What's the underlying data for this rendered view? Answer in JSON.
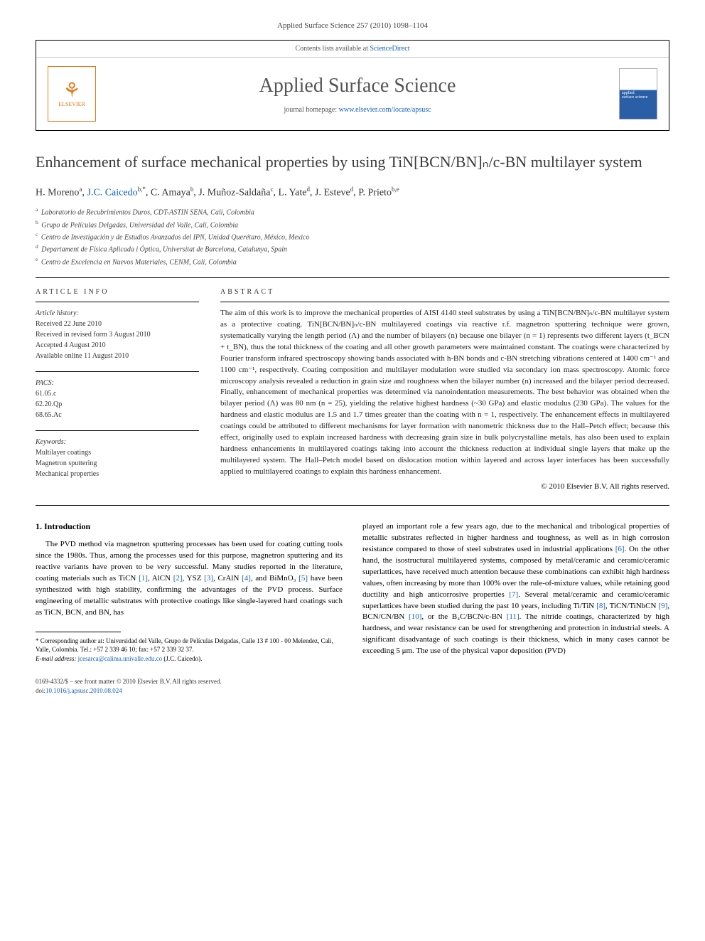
{
  "journal_ref": "Applied Surface Science 257 (2010) 1098–1104",
  "header": {
    "contents_text": "Contents lists available at ",
    "contents_link": "ScienceDirect",
    "journal_title": "Applied Surface Science",
    "home_prefix": "journal homepage: ",
    "home_url": "www.elsevier.com/locate/apsusc",
    "publisher": "ELSEVIER",
    "cover_line1": "applied",
    "cover_line2": "surface science"
  },
  "title": "Enhancement of surface mechanical properties by using TiN[BCN/BN]ₙ/c-BN multilayer system",
  "authors_html": "H. Moreno<sup>a</sup>, J.C. Caicedo<sup>b,*</sup>, C. Amaya<sup>b</sup>, J. Muñoz-Saldaña<sup>c</sup>, L. Yate<sup>d</sup>, J. Esteve<sup>d</sup>, P. Prieto<sup>b,e</sup>",
  "affiliations": [
    {
      "sup": "a",
      "text": "Laboratorio de Recubrimientos Duros, CDT-ASTIN SENA, Cali, Colombia"
    },
    {
      "sup": "b",
      "text": "Grupo de Películas Delgadas, Universidad del Valle, Cali, Colombia"
    },
    {
      "sup": "c",
      "text": "Centro de Investigación y de Estudios Avanzados del IPN, Unidad Querétaro, México, Mexico"
    },
    {
      "sup": "d",
      "text": "Departament de Física Aplicada i Òptica, Universitat de Barcelona, Catalunya, Spain"
    },
    {
      "sup": "e",
      "text": "Centro de Excelencia en Nuevos Materiales, CENM, Cali, Colombia"
    }
  ],
  "info": {
    "heading": "ARTICLE INFO",
    "history_hdr": "Article history:",
    "history": [
      "Received 22 June 2010",
      "Received in revised form 3 August 2010",
      "Accepted 4 August 2010",
      "Available online 11 August 2010"
    ],
    "pacs_hdr": "PACS:",
    "pacs": [
      "61.05.c",
      "62.20.Qp",
      "68.65.Ac"
    ],
    "keywords_hdr": "Keywords:",
    "keywords": [
      "Multilayer coatings",
      "Magnetron sputtering",
      "Mechanical properties"
    ]
  },
  "abstract": {
    "heading": "ABSTRACT",
    "text": "The aim of this work is to improve the mechanical properties of AISI 4140 steel substrates by using a TiN[BCN/BN]ₙ/c-BN multilayer system as a protective coating. TiN[BCN/BN]ₙ/c-BN multilayered coatings via reactive r.f. magnetron sputtering technique were grown, systematically varying the length period (Λ) and the number of bilayers (n) because one bilayer (n = 1) represents two different layers (t_BCN + t_BN), thus the total thickness of the coating and all other growth parameters were maintained constant. The coatings were characterized by Fourier transform infrared spectroscopy showing bands associated with h-BN bonds and c-BN stretching vibrations centered at 1400 cm⁻¹ and 1100 cm⁻¹, respectively. Coating composition and multilayer modulation were studied via secondary ion mass spectroscopy. Atomic force microscopy analysis revealed a reduction in grain size and roughness when the bilayer number (n) increased and the bilayer period decreased. Finally, enhancement of mechanical properties was determined via nanoindentation measurements. The best behavior was obtained when the bilayer period (Λ) was 80 nm (n = 25), yielding the relative highest hardness (~30 GPa) and elastic modulus (230 GPa). The values for the hardness and elastic modulus are 1.5 and 1.7 times greater than the coating with n = 1, respectively. The enhancement effects in multilayered coatings could be attributed to different mechanisms for layer formation with nanometric thickness due to the Hall–Petch effect; because this effect, originally used to explain increased hardness with decreasing grain size in bulk polycrystalline metals, has also been used to explain hardness enhancements in multilayered coatings taking into account the thickness reduction at individual single layers that make up the multilayered system. The Hall–Petch model based on dislocation motion within layered and across layer interfaces has been successfully applied to multilayered coatings to explain this hardness enhancement.",
    "copyright": "© 2010 Elsevier B.V. All rights reserved."
  },
  "intro": {
    "heading": "1. Introduction",
    "col1": "The PVD method via magnetron sputtering processes has been used for coating cutting tools since the 1980s. Thus, among the processes used for this purpose, magnetron sputtering and its reactive variants have proven to be very successful. Many studies reported in the literature, coating materials such as TiCN [1], AlCN [2], YSZ [3], CrAlN [4], and BiMnO₃ [5] have been synthesized with high stability, confirming the advantages of the PVD process. Surface engineering of metallic substrates with protective coatings like single-layered hard coatings such as TiCN, BCN, and BN, has",
    "col2": "played an important role a few years ago, due to the mechanical and tribological properties of metallic substrates reflected in higher hardness and toughness, as well as in high corrosion resistance compared to those of steel substrates used in industrial applications [6]. On the other hand, the isostructural multilayered systems, composed by metal/ceramic and ceramic/ceramic superlattices, have received much attention because these combinations can exhibit high hardness values, often increasing by more than 100% over the rule-of-mixture values, while retaining good ductility and high anticorrosive properties [7]. Several metal/ceramic and ceramic/ceramic superlattices have been studied during the past 10 years, including Ti/TiN [8], TiCN/TiNbCN [9], BCN/CN/BN [10], or the B₄C/BCN/c-BN [11]. The nitride coatings, characterized by high hardness, and wear resistance can be used for strengthening and protection in industrial steels. A significant disadvantage of such coatings is their thickness, which in many cases cannot be exceeding 5 μm. The use of the physical vapor deposition (PVD)"
  },
  "footnote": {
    "corr": "* Corresponding author at: Universidad del Valle, Grupo de Películas Delgadas, Calle 13 # 100 - 00 Melendez, Cali, Valle, Colombia. Tel.: +57 2 339 46 10; fax: +57 2 339 32 37.",
    "email_label": "E-mail address: ",
    "email": "jcesarca@calima.univalle.edu.co",
    "email_suffix": " (J.C. Caicedo)."
  },
  "bottom": {
    "issn": "0169-4332/$ – see front matter © 2010 Elsevier B.V. All rights reserved.",
    "doi_label": "doi:",
    "doi": "10.1016/j.apsusc.2010.08.024"
  },
  "refs": {
    "1": "[1]",
    "2": "[2]",
    "3": "[3]",
    "4": "[4]",
    "5": "[5]",
    "6": "[6]",
    "7": "[7]",
    "8": "[8]",
    "9": "[9]",
    "10": "[10]",
    "11": "[11]"
  }
}
